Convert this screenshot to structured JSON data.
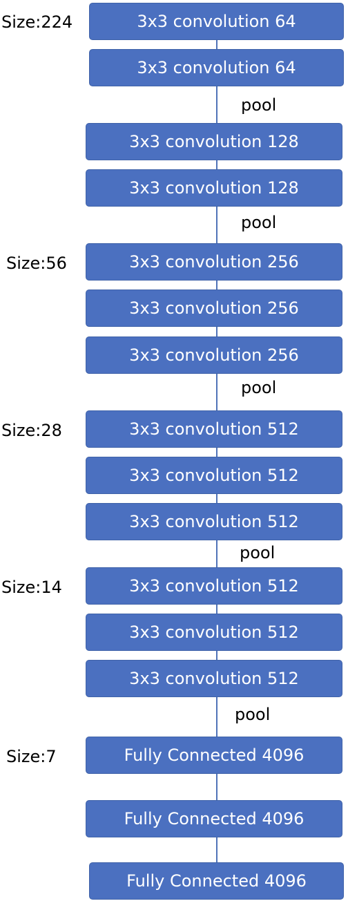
{
  "layers": [
    "3x3 convolution 64",
    "3x3 convolution 64",
    "3x3 convolution 128",
    "3x3 convolution 128",
    "3x3 convolution 256",
    "3x3 convolution 256",
    "3x3 convolution 256",
    "3x3 convolution 512",
    "3x3 convolution 512",
    "3x3 convolution 512",
    "3x3 convolution 512",
    "3x3 convolution 512",
    "3x3 convolution 512",
    "Fully Connected 4096",
    "Fully Connected 4096",
    "Fully Connected 4096"
  ],
  "pool_labels": [
    "pool",
    "pool",
    "pool",
    "pool",
    "pool"
  ],
  "size_labels": [
    "Size:224",
    "Size:56",
    "Size:28",
    "Size:14",
    "Size:7"
  ],
  "colors": {
    "box_fill": "#4b70c0",
    "box_text": "#ffffff",
    "connector": "#4f72b8",
    "label_text": "#000000"
  }
}
